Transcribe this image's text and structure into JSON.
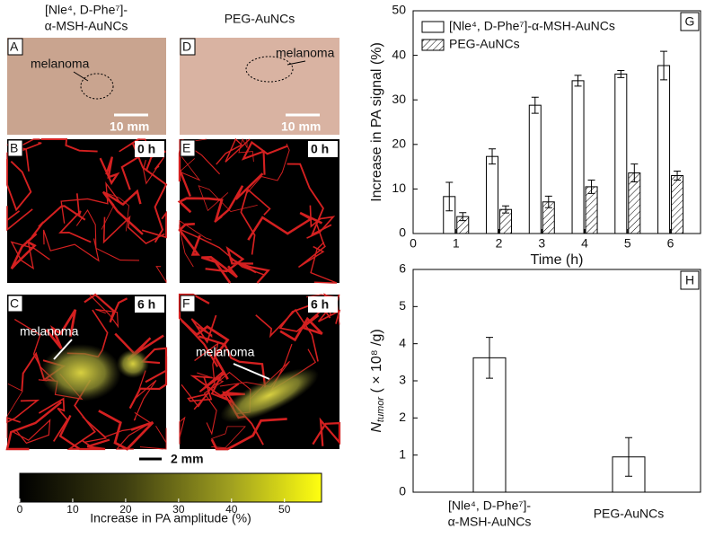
{
  "panels": {
    "column_titles": [
      "[Nle⁴, D-Phe⁷]-",
      "α-MSH-AuNCs",
      "PEG-AuNCs"
    ],
    "letters": [
      "A",
      "B",
      "C",
      "D",
      "E",
      "F"
    ],
    "melanoma": "melanoma",
    "photo_scale": "10 mm",
    "times": [
      "0 h",
      "6 h"
    ],
    "image_scale": "2 mm",
    "colorbar": {
      "label": "Increase in PA amplitude (%)",
      "lim": [
        0,
        57
      ],
      "ticks": [
        0,
        10,
        20,
        30,
        40,
        50
      ]
    }
  },
  "chart_data": [
    {
      "type": "bar",
      "panel": "G",
      "x_label": "Time (h)",
      "y_label": "Increase in PA signal (%)",
      "x": [
        1,
        2,
        3,
        4,
        5,
        6
      ],
      "xlim": [
        0,
        6.7
      ],
      "xticks": [
        0,
        1,
        2,
        3,
        4,
        5,
        6
      ],
      "ylim": [
        0,
        50
      ],
      "yticks": [
        0,
        10,
        20,
        30,
        40,
        50
      ],
      "legend": "top-left",
      "series": [
        {
          "name": "[Nle⁴, D-Phe⁷]-α-MSH-AuNCs",
          "color": "#ffffff",
          "hatch": false,
          "values": [
            8.3,
            17.3,
            28.8,
            34.3,
            35.8,
            37.7
          ],
          "errors": [
            3.2,
            1.7,
            1.8,
            1.2,
            0.8,
            3.2
          ]
        },
        {
          "name": "PEG-AuNCs",
          "color": "#ffffff",
          "hatch": true,
          "values": [
            3.8,
            5.4,
            7.1,
            10.5,
            13.6,
            13.0
          ],
          "errors": [
            0.9,
            0.8,
            1.3,
            1.5,
            2.0,
            1.0
          ]
        }
      ]
    },
    {
      "type": "bar",
      "panel": "H",
      "y_label": {
        "symbol": "N",
        "subscript": "tumor",
        "unit": " ( × 10⁸ /g)"
      },
      "categories": [
        [
          "[Nle⁴, D-Phe⁷]-",
          "α-MSH-AuNCs"
        ],
        [
          "PEG-AuNCs"
        ]
      ],
      "ylim": [
        0,
        6
      ],
      "yticks": [
        0,
        1,
        2,
        3,
        4,
        5,
        6
      ],
      "series": [
        {
          "color": "#ffffff",
          "values": [
            3.62,
            0.95
          ],
          "errors": [
            0.55,
            0.52
          ]
        }
      ]
    }
  ]
}
